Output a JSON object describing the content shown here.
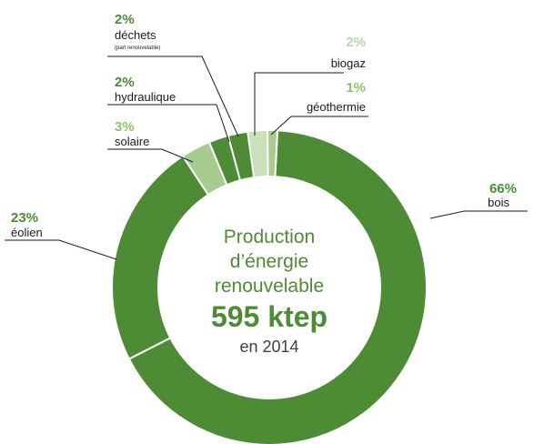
{
  "chart_data": {
    "type": "pie",
    "donut": true,
    "year": "2014",
    "center_text": {
      "line1": "Production",
      "line2": "d’énergie",
      "line3": "renouvelable",
      "total": "595 ktep",
      "line5": "en 2014"
    },
    "slices": [
      {
        "name": "bois",
        "value": 66,
        "pct_label": "66%",
        "color": "#4d8c34",
        "text_color": "#4d8c34"
      },
      {
        "name": "éolien",
        "value": 23,
        "pct_label": "23%",
        "color": "#4d8c34",
        "text_color": "#4d8c34"
      },
      {
        "name": "solaire",
        "value": 3,
        "pct_label": "3%",
        "color": "#a6cc8f",
        "text_color": "#8fc26b"
      },
      {
        "name": "hydraulique",
        "value": 2,
        "pct_label": "2%",
        "color": "#4d8c34",
        "text_color": "#4d8c34"
      },
      {
        "name": "déchets",
        "sub": "(part renouvelable)",
        "value": 2,
        "pct_label": "2%",
        "color": "#4d8c34",
        "text_color": "#4d8c34"
      },
      {
        "name": "biogaz",
        "value": 2,
        "pct_label": "2%",
        "color": "#c8e0bb",
        "text_color": "#bcd9ab"
      },
      {
        "name": "géothermie",
        "value": 1,
        "pct_label": "1%",
        "color": "#a6cc8f",
        "text_color": "#8fc26b"
      }
    ],
    "colors": {
      "center_text": "#4d8c34",
      "leader": "#1a1a1a"
    }
  }
}
